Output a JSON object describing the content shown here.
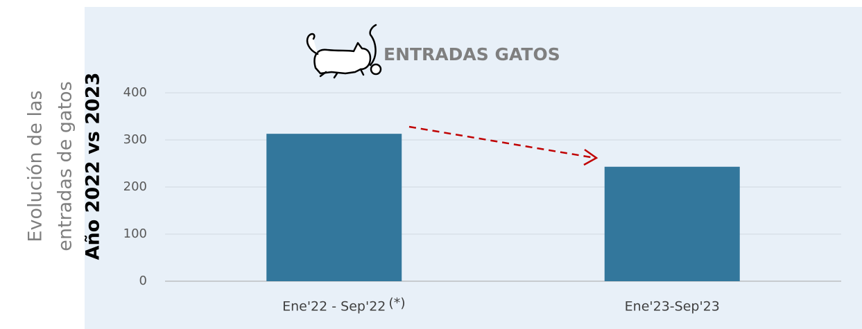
{
  "chart_data": {
    "type": "bar",
    "title": "ENTRADAS GATOS",
    "y_label": [
      "Evolución de las",
      "entradas de gatos",
      "Año 2022 vs 2023"
    ],
    "categories": [
      "Ene'22 - Sep'22",
      "Ene'23-Sep'23"
    ],
    "category_note": "(*)",
    "values": [
      313,
      243
    ],
    "color": "#33779c",
    "ylim": [
      0,
      400
    ],
    "yticks": [
      0,
      100,
      200,
      300,
      400
    ],
    "grid": true
  }
}
